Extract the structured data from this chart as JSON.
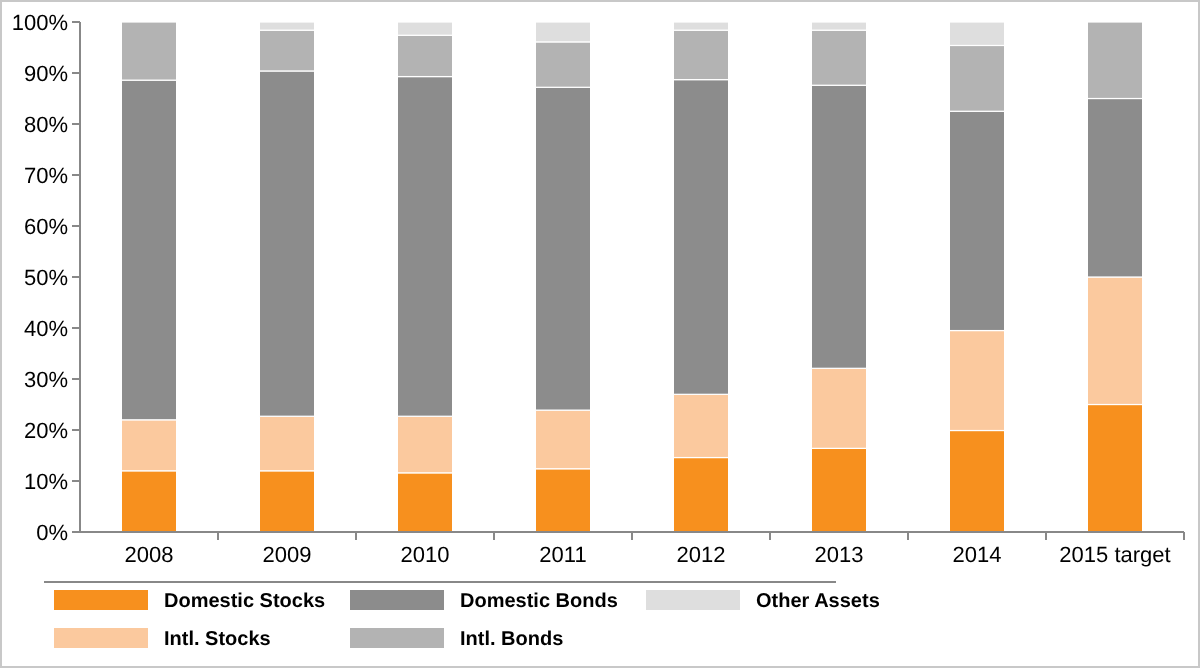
{
  "chart_data": {
    "type": "bar",
    "stacked": true,
    "categories": [
      "2008",
      "2009",
      "2010",
      "2011",
      "2012",
      "2013",
      "2014",
      "2015 target"
    ],
    "series": [
      {
        "name": "Domestic Stocks",
        "color": "#f7901e",
        "values": [
          12,
          12,
          11.6,
          12.4,
          14.6,
          16.4,
          19.9,
          25
        ]
      },
      {
        "name": "Intl. Stocks",
        "color": "#fbc99e",
        "values": [
          10,
          10.7,
          11.1,
          11.5,
          12.4,
          15.7,
          19.6,
          25
        ]
      },
      {
        "name": "Domestic Bonds",
        "color": "#8c8c8c",
        "values": [
          66.6,
          67.7,
          66.6,
          63.3,
          61.7,
          55.5,
          43,
          35
        ]
      },
      {
        "name": "Intl. Bonds",
        "color": "#b3b3b3",
        "values": [
          11.4,
          8,
          8.1,
          8.9,
          9.7,
          10.8,
          12.9,
          15
        ]
      },
      {
        "name": "Other Assets",
        "color": "#dedede",
        "values": [
          0,
          1.6,
          2.6,
          3.9,
          1.6,
          1.6,
          4.6,
          0
        ]
      }
    ],
    "ylim": [
      0,
      100
    ],
    "yticks": [
      {
        "value": 0,
        "label": "0%"
      },
      {
        "value": 10,
        "label": "10%"
      },
      {
        "value": 20,
        "label": "20%"
      },
      {
        "value": 30,
        "label": "30%"
      },
      {
        "value": 40,
        "label": "40%"
      },
      {
        "value": 50,
        "label": "50%"
      },
      {
        "value": 60,
        "label": "60%"
      },
      {
        "value": 70,
        "label": "70%"
      },
      {
        "value": 80,
        "label": "80%"
      },
      {
        "value": 90,
        "label": "90%"
      },
      {
        "value": 100,
        "label": "100%"
      }
    ],
    "grid": false,
    "legend": "bottom"
  }
}
